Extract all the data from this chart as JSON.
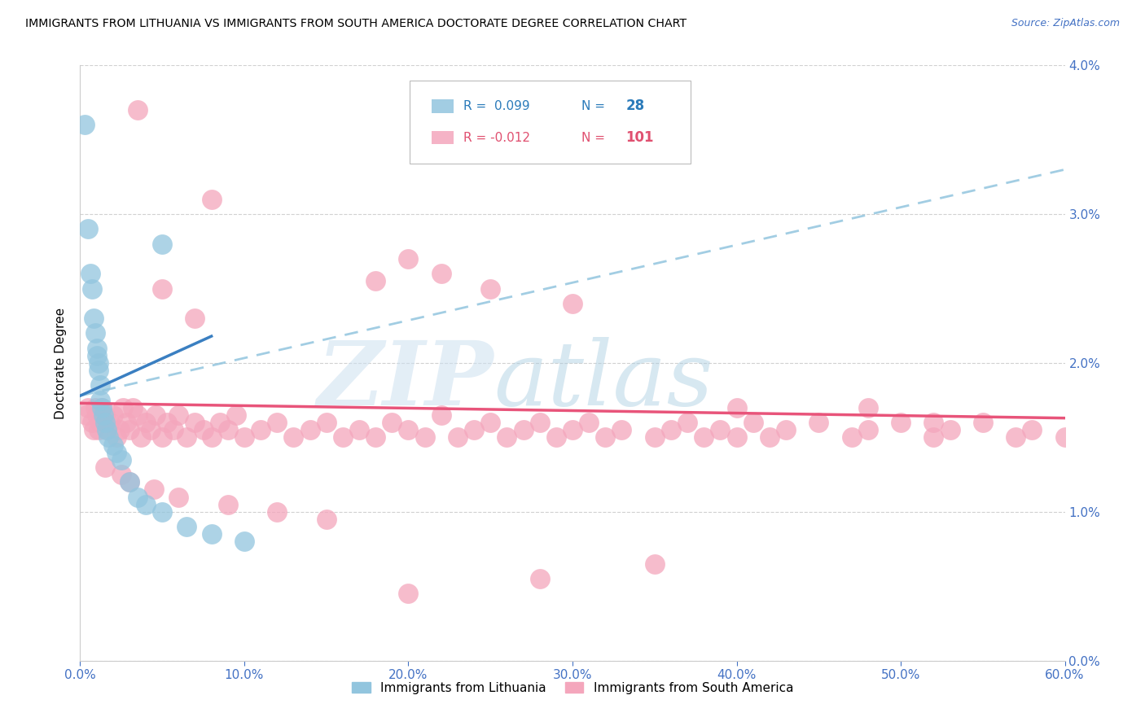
{
  "title": "IMMIGRANTS FROM LITHUANIA VS IMMIGRANTS FROM SOUTH AMERICA DOCTORATE DEGREE CORRELATION CHART",
  "source": "Source: ZipAtlas.com",
  "ylabel": "Doctorate Degree",
  "xmin": 0.0,
  "xmax": 60.0,
  "ymin": 0.0,
  "ymax": 4.0,
  "yticks": [
    0.0,
    1.0,
    2.0,
    3.0,
    4.0
  ],
  "xticks": [
    0.0,
    10.0,
    20.0,
    30.0,
    40.0,
    50.0,
    60.0
  ],
  "legend_label_blue": "Immigrants from Lithuania",
  "legend_label_pink": "Immigrants from South America",
  "blue_color": "#92c5de",
  "pink_color": "#f4a6bc",
  "blue_line_color": "#3a7fc1",
  "blue_dash_color": "#92c5de",
  "pink_line_color": "#e8547a",
  "tick_color": "#4472c4",
  "ylabel_color": "#000000",
  "blue_r_color": "#2b7bba",
  "pink_r_color": "#e05070",
  "blue_scatter_x": [
    0.3,
    0.5,
    0.6,
    0.7,
    0.8,
    0.9,
    1.0,
    1.0,
    1.1,
    1.1,
    1.2,
    1.2,
    1.3,
    1.4,
    1.5,
    1.6,
    1.7,
    2.0,
    2.2,
    2.5,
    3.0,
    3.5,
    4.0,
    5.0,
    6.5,
    8.0,
    10.0,
    5.0
  ],
  "blue_scatter_y": [
    3.6,
    2.9,
    2.6,
    2.5,
    2.3,
    2.2,
    2.1,
    2.05,
    2.0,
    1.95,
    1.85,
    1.75,
    1.7,
    1.65,
    1.6,
    1.55,
    1.5,
    1.45,
    1.4,
    1.35,
    1.2,
    1.1,
    1.05,
    1.0,
    0.9,
    0.85,
    0.8,
    2.8
  ],
  "pink_scatter_x": [
    0.4,
    0.5,
    0.7,
    0.8,
    0.9,
    1.0,
    1.1,
    1.2,
    1.3,
    1.5,
    1.6,
    1.8,
    2.0,
    2.2,
    2.4,
    2.6,
    2.8,
    3.0,
    3.2,
    3.5,
    3.7,
    4.0,
    4.3,
    4.6,
    5.0,
    5.3,
    5.7,
    6.0,
    6.5,
    7.0,
    7.5,
    8.0,
    8.5,
    9.0,
    9.5,
    10.0,
    11.0,
    12.0,
    13.0,
    14.0,
    15.0,
    16.0,
    17.0,
    18.0,
    19.0,
    20.0,
    21.0,
    22.0,
    23.0,
    24.0,
    25.0,
    26.0,
    27.0,
    28.0,
    29.0,
    30.0,
    31.0,
    32.0,
    33.0,
    35.0,
    36.0,
    37.0,
    38.0,
    39.0,
    40.0,
    41.0,
    42.0,
    43.0,
    45.0,
    47.0,
    48.0,
    50.0,
    52.0,
    53.0,
    55.0,
    57.0,
    58.0,
    60.0,
    5.0,
    7.0,
    3.5,
    8.0,
    20.0,
    22.0,
    18.0,
    25.0,
    30.0,
    40.0,
    48.0,
    52.0,
    1.5,
    2.5,
    3.0,
    4.5,
    6.0,
    9.0,
    12.0,
    15.0,
    20.0,
    28.0,
    35.0
  ],
  "pink_scatter_y": [
    1.65,
    1.7,
    1.6,
    1.55,
    1.7,
    1.65,
    1.55,
    1.6,
    1.7,
    1.65,
    1.55,
    1.6,
    1.65,
    1.5,
    1.55,
    1.7,
    1.6,
    1.55,
    1.7,
    1.65,
    1.5,
    1.6,
    1.55,
    1.65,
    1.5,
    1.6,
    1.55,
    1.65,
    1.5,
    1.6,
    1.55,
    1.5,
    1.6,
    1.55,
    1.65,
    1.5,
    1.55,
    1.6,
    1.5,
    1.55,
    1.6,
    1.5,
    1.55,
    1.5,
    1.6,
    1.55,
    1.5,
    1.65,
    1.5,
    1.55,
    1.6,
    1.5,
    1.55,
    1.6,
    1.5,
    1.55,
    1.6,
    1.5,
    1.55,
    1.5,
    1.55,
    1.6,
    1.5,
    1.55,
    1.5,
    1.6,
    1.5,
    1.55,
    1.6,
    1.5,
    1.55,
    1.6,
    1.5,
    1.55,
    1.6,
    1.5,
    1.55,
    1.5,
    2.5,
    2.3,
    3.7,
    3.1,
    2.7,
    2.6,
    2.55,
    2.5,
    2.4,
    1.7,
    1.7,
    1.6,
    1.3,
    1.25,
    1.2,
    1.15,
    1.1,
    1.05,
    1.0,
    0.95,
    0.45,
    0.55,
    0.65
  ],
  "blue_line_x0": 0.0,
  "blue_line_x1": 60.0,
  "blue_line_y0": 1.78,
  "blue_line_y1": 3.3,
  "blue_solid_x0": 0.0,
  "blue_solid_x1": 8.0,
  "blue_solid_y0": 1.78,
  "blue_solid_y1": 2.18,
  "pink_line_x0": 0.0,
  "pink_line_x1": 60.0,
  "pink_line_y0": 1.73,
  "pink_line_y1": 1.63
}
